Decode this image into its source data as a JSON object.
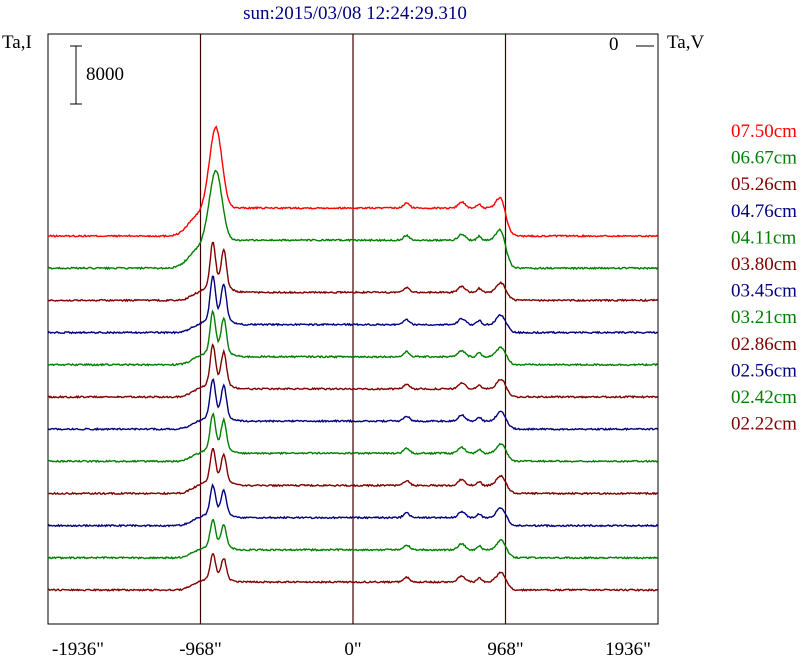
{
  "chart_data": {
    "type": "line",
    "title": "sun:2015/03/08 12:24:29.310",
    "ylabel_left": "Ta,I",
    "ylabel_right": "Ta,V",
    "right_zero_label": "0",
    "scale_bar_label": "8000",
    "x_ticks": [
      {
        "value": -1936,
        "label": "-1936\""
      },
      {
        "value": -968,
        "label": "-968\""
      },
      {
        "value": 0,
        "label": "0\""
      },
      {
        "value": 968,
        "label": "968\""
      },
      {
        "value": 1936,
        "label": "1936\""
      }
    ],
    "xlim": [
      -1936,
      1936
    ],
    "vertical_lines": [
      -968,
      0,
      968
    ],
    "legend_position": "right",
    "series": [
      {
        "name": "07.50cm",
        "color": "#ff0000",
        "peak": 11000,
        "double_peak": false
      },
      {
        "name": "06.67cm",
        "color": "#008000",
        "peak": 9500,
        "double_peak": false
      },
      {
        "name": "05.26cm",
        "color": "#800000",
        "peak": 5800,
        "double_peak": true
      },
      {
        "name": "04.76cm",
        "color": "#000080",
        "peak": 5500,
        "double_peak": true
      },
      {
        "name": "04.11cm",
        "color": "#008000",
        "peak": 5200,
        "double_peak": true
      },
      {
        "name": "03.80cm",
        "color": "#800000",
        "peak": 5000,
        "double_peak": true
      },
      {
        "name": "03.45cm",
        "color": "#000080",
        "peak": 4800,
        "double_peak": true
      },
      {
        "name": "03.21cm",
        "color": "#008000",
        "peak": 4500,
        "double_peak": true
      },
      {
        "name": "02.86cm",
        "color": "#800000",
        "peak": 4200,
        "double_peak": true
      },
      {
        "name": "02.56cm",
        "color": "#000080",
        "peak": 3700,
        "double_peak": true
      },
      {
        "name": "02.42cm",
        "color": "#008000",
        "peak": 3400,
        "double_peak": true
      },
      {
        "name": "02.22cm",
        "color": "#800000",
        "peak": 3200,
        "double_peak": true
      }
    ]
  }
}
